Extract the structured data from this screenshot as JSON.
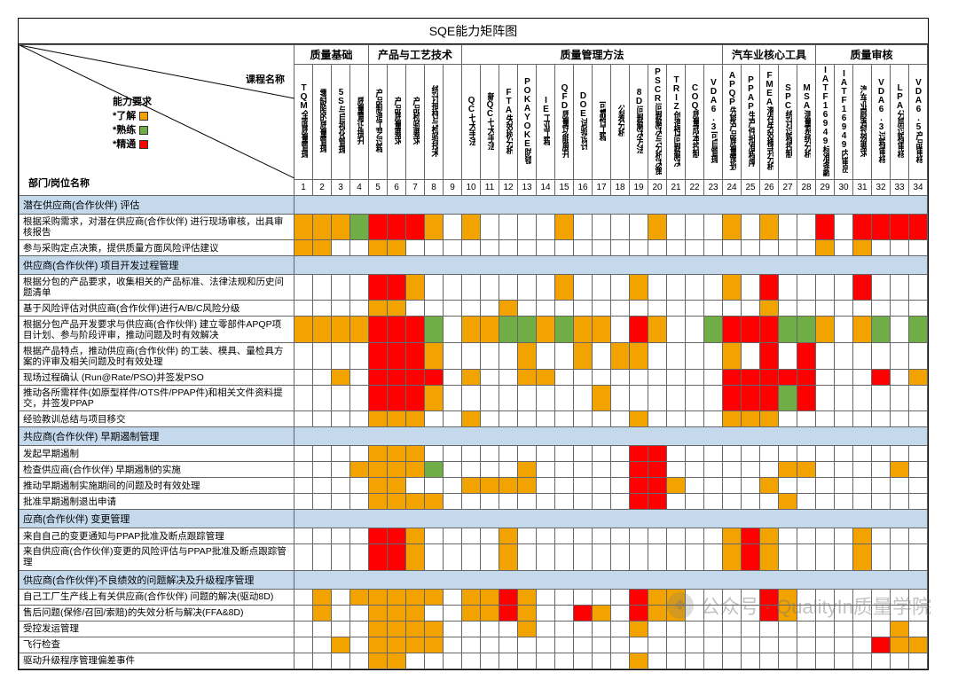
{
  "title": "SQE能力矩阵图",
  "corner": {
    "course": "课程名称",
    "ability": "能力要求",
    "dept": "部门/岗位名称",
    "legend": [
      {
        "label": "*了解",
        "color": "#f2a300"
      },
      {
        "label": "*熟练",
        "color": "#70ad47"
      },
      {
        "label": "*精通",
        "color": "#ff0000"
      }
    ]
  },
  "colors": {
    "o": "#f2a300",
    "g": "#70ad47",
    "r": "#ff0000",
    "section": "#c5d9ed"
  },
  "groups": [
    {
      "label": "质量基础",
      "span": 4
    },
    {
      "label": "产品与工艺技术",
      "span": 5
    },
    {
      "label": "质量管理方法",
      "span": 14
    },
    {
      "label": "汽车业核心工具",
      "span": 5
    },
    {
      "label": "质量审核",
      "span": 6
    }
  ],
  "columns": [
    "TQM全面质量管理",
    "零缺陷的质量管理",
    "5S与目视化管理",
    "质量意识提升",
    "产品制造工艺过程",
    "产品质量要求",
    "产品检验要求",
    "统计抽样与检验技术",
    "",
    "QC七大手法",
    "新QC七大手法",
    "FTA失效树分析",
    "POKAYOKE防错",
    "IE工业工程",
    "QFD质量功能展开",
    "DOE试验设计",
    "可靠性工程",
    "公差分析",
    "8D问题解决方法",
    "PSCR问题解决与分析决策",
    "TRIZ创造性问题解决",
    "COQ质量成本控制",
    "VDA6.3可自管理",
    "APQP先期产品质量策划",
    "PPAP生产件批准程序",
    "FMEA潜在失效模式分析",
    "SPC统计过程控制",
    "MSA测量系统分析",
    "IATF16949标准条款",
    "IATF16949内审员",
    "汽车业顾客特殊要求",
    "VDA6.3过程审核",
    "LPA分层过程审核",
    "VDA6.5产品审核"
  ],
  "rows": [
    {
      "type": "section",
      "label": "潜在供应商(合作伙伴)   评估"
    },
    {
      "type": "data",
      "label": "根据采购需求，对潜在供应商(合作伙伴) 进行现场审核，出具审核报告",
      "cells": [
        "o",
        "o",
        "o",
        "g",
        "r",
        "r",
        "r",
        "o",
        "",
        "o",
        "",
        "",
        "",
        "",
        "o",
        "",
        "",
        "",
        "",
        "o",
        "",
        "",
        "",
        "o",
        "",
        "o",
        "",
        "",
        "r",
        "",
        "r",
        "r",
        "r",
        "r"
      ]
    },
    {
      "type": "data",
      "label": "参与采购定点决策，提供质量方面风险评估建议",
      "cells": [
        "o",
        "o",
        "",
        "",
        "o",
        "o",
        "",
        "",
        "",
        "",
        "",
        "",
        "",
        "",
        "",
        "",
        "",
        "",
        "",
        "",
        "",
        "",
        "",
        "",
        "",
        "",
        "",
        "",
        "o",
        "",
        "o",
        "",
        "",
        ""
      ]
    },
    {
      "type": "section",
      "label": "供应商(合作伙伴)   项目开发过程管理"
    },
    {
      "type": "data",
      "label": "根据分包的产品要求，收集相关的产品标准、法律法规和历史问题清单",
      "cells": [
        "",
        "",
        "",
        "",
        "r",
        "r",
        "o",
        "",
        "",
        "",
        "",
        "",
        "",
        "",
        "o",
        "",
        "",
        "",
        "o",
        "",
        "",
        "",
        "",
        "o",
        "",
        "r",
        "",
        "",
        "",
        "",
        "r",
        "",
        "",
        ""
      ]
    },
    {
      "type": "data",
      "label": "基于风险评估对供应商(合作伙伴)进行A/B/C风险分级",
      "cells": [
        "",
        "",
        "",
        "",
        "o",
        "o",
        "",
        "",
        "",
        "",
        "",
        "o",
        "",
        "",
        "",
        "",
        "",
        "",
        "",
        "",
        "",
        "",
        "",
        "",
        "",
        "o",
        "",
        "",
        "",
        "",
        "",
        "",
        "",
        ""
      ]
    },
    {
      "type": "data",
      "tall": true,
      "label": "根据分包产品开发要求与供应商(合作伙伴) 建立零部件APQP项目计划、参与阶段评审，推动问题及时有效解决",
      "cells": [
        "o",
        "o",
        "o",
        "o",
        "r",
        "r",
        "r",
        "g",
        "",
        "o",
        "o",
        "g",
        "g",
        "o",
        "g",
        "o",
        "o",
        "",
        "r",
        "o",
        "",
        "",
        "g",
        "r",
        "r",
        "r",
        "g",
        "g",
        "o",
        "",
        "o",
        "g",
        "",
        "g"
      ]
    },
    {
      "type": "data",
      "tall": true,
      "label": "根据产品特点，推动供应商(合作伙伴) 的工装、模具、量检具方案的评审及相关问题及时有效处理",
      "cells": [
        "",
        "",
        "",
        "",
        "r",
        "r",
        "r",
        "o",
        "",
        "",
        "",
        "",
        "o",
        "",
        "",
        "o",
        "",
        "o",
        "o",
        "",
        "",
        "",
        "",
        "o",
        "",
        "r",
        "",
        "r",
        "",
        "",
        "",
        "",
        "",
        ""
      ]
    },
    {
      "type": "data",
      "label": "现场过程确认 (Run@Rate/PSO)并签发PSO",
      "cells": [
        "",
        "",
        "o",
        "",
        "r",
        "r",
        "r",
        "r",
        "",
        "o",
        "",
        "",
        "o",
        "o",
        "",
        "",
        "",
        "",
        "",
        "",
        "",
        "",
        "",
        "r",
        "r",
        "r",
        "r",
        "r",
        "",
        "",
        "",
        "r",
        "",
        "o"
      ]
    },
    {
      "type": "data",
      "label": "推动各所需样件(如原型样件/OTS件/PPAP件)和相关文件资料提交，并签发PPAP",
      "cells": [
        "",
        "",
        "",
        "",
        "r",
        "r",
        "r",
        "o",
        "",
        "",
        "",
        "",
        "",
        "",
        "",
        "",
        "o",
        "",
        "",
        "",
        "",
        "",
        "",
        "r",
        "r",
        "r",
        "g",
        "r",
        "",
        "",
        "",
        "",
        "",
        ""
      ]
    },
    {
      "type": "data",
      "label": "经验教训总结与项目移交",
      "cells": [
        "",
        "",
        "",
        "",
        "o",
        "o",
        "o",
        "",
        "",
        "o",
        "",
        "",
        "",
        "",
        "",
        "",
        "",
        "",
        "o",
        "",
        "",
        "",
        "",
        "o",
        "o",
        "o",
        "",
        "",
        "",
        "",
        "",
        "",
        "",
        ""
      ]
    },
    {
      "type": "section",
      "label": "共应商(合作伙伴)   早期遏制管理"
    },
    {
      "type": "data",
      "label": "发起早期遏制",
      "cells": [
        "",
        "",
        "",
        "",
        "o",
        "o",
        "o",
        "",
        "",
        "",
        "",
        "",
        "",
        "",
        "",
        "",
        "",
        "",
        "r",
        "r",
        "",
        "",
        "",
        "",
        "",
        "",
        "",
        "",
        "",
        "",
        "",
        "",
        "",
        ""
      ]
    },
    {
      "type": "data",
      "label": "检查供应商(合作伙伴) 早期遏制的实施",
      "cells": [
        "",
        "",
        "",
        "o",
        "o",
        "o",
        "o",
        "g",
        "",
        "",
        "",
        "",
        "o",
        "",
        "",
        "",
        "",
        "",
        "r",
        "r",
        "",
        "",
        "",
        "",
        "",
        "",
        "o",
        "o",
        "",
        "",
        "",
        "",
        "o",
        ""
      ]
    },
    {
      "type": "data",
      "label": "推动早期遏制实施期间的问题及时有效处理",
      "cells": [
        "",
        "",
        "",
        "",
        "o",
        "o",
        "",
        "",
        "",
        "o",
        "o",
        "o",
        "o",
        "",
        "",
        "",
        "",
        "",
        "r",
        "r",
        "o",
        "",
        "",
        "",
        "",
        "o",
        "",
        "",
        "",
        "",
        "",
        "",
        "",
        ""
      ]
    },
    {
      "type": "data",
      "label": "批准早期遏制退出申请",
      "cells": [
        "",
        "",
        "",
        "",
        "o",
        "o",
        "o",
        "o",
        "",
        "",
        "",
        "",
        "",
        "",
        "",
        "",
        "",
        "",
        "r",
        "r",
        "",
        "",
        "",
        "",
        "",
        "",
        "o",
        "",
        "",
        "",
        "",
        "",
        "",
        ""
      ]
    },
    {
      "type": "section",
      "label": "应商(合作伙伴)   变更管理"
    },
    {
      "type": "data",
      "label": "来自自己的变更通知与PPAP批准及断点跟踪管理",
      "cells": [
        "",
        "",
        "",
        "",
        "r",
        "r",
        "o",
        "",
        "",
        "",
        "",
        "o",
        "",
        "",
        "",
        "",
        "",
        "",
        "",
        "",
        "",
        "",
        "",
        "o",
        "r",
        "o",
        "",
        "",
        "",
        "",
        "o",
        "",
        "",
        ""
      ]
    },
    {
      "type": "data",
      "label": "来自供应商(合作伙伴)变更的风险评估与PPAP批准及断点跟踪管理",
      "cells": [
        "",
        "",
        "",
        "",
        "r",
        "r",
        "o",
        "",
        "",
        "",
        "",
        "o",
        "",
        "",
        "",
        "",
        "",
        "",
        "",
        "",
        "",
        "",
        "",
        "o",
        "r",
        "o",
        "",
        "",
        "",
        "",
        "o",
        "",
        "",
        ""
      ]
    },
    {
      "type": "section",
      "label": "供应商(合作伙伴)不良绩效的问题解决及升级程序管理"
    },
    {
      "type": "data",
      "label": "自己工厂生产线上有关供应商(合作伙伴) 问题的解决(驱动8D)",
      "cells": [
        "",
        "o",
        "",
        "o",
        "o",
        "o",
        "o",
        "o",
        "",
        "o",
        "o",
        "r",
        "o",
        "",
        "",
        "",
        "",
        "",
        "r",
        "o",
        "o",
        "",
        "",
        "",
        "",
        "r",
        "o",
        "",
        "",
        "",
        "",
        "",
        "",
        ""
      ]
    },
    {
      "type": "data",
      "label": "售后问题(保修/召回/索赔)的失效分析与解决(FFA&8D)",
      "cells": [
        "",
        "o",
        "",
        "",
        "o",
        "o",
        "o",
        "",
        "",
        "o",
        "o",
        "r",
        "o",
        "",
        "",
        "r",
        "o",
        "",
        "r",
        "o",
        "o",
        "",
        "",
        "",
        "",
        "r",
        "o",
        "",
        "",
        "",
        "",
        "",
        "",
        ""
      ]
    },
    {
      "type": "data",
      "label": "受控发运管理",
      "cells": [
        "",
        "",
        "",
        "",
        "o",
        "o",
        "o",
        "o",
        "",
        "",
        "",
        "",
        "o",
        "",
        "",
        "",
        "",
        "",
        "o",
        "",
        "",
        "",
        "",
        "",
        "",
        "",
        "",
        "",
        "",
        "",
        "",
        "",
        "o",
        ""
      ]
    },
    {
      "type": "data",
      "label": "飞行检查",
      "cells": [
        "",
        "",
        "o",
        "",
        "o",
        "o",
        "o",
        "o",
        "",
        "",
        "",
        "",
        "",
        "",
        "",
        "",
        "",
        "",
        "",
        "",
        "",
        "",
        "",
        "",
        "",
        "",
        "",
        "",
        "",
        "",
        "",
        "r",
        "o",
        "o"
      ]
    },
    {
      "type": "data",
      "label": "驱动升级程序管理偏差事件",
      "cells": [
        "",
        "",
        "",
        "",
        "o",
        "o",
        "",
        "",
        "",
        "",
        "",
        "",
        "",
        "",
        "",
        "",
        "",
        "",
        "o",
        "",
        "",
        "",
        "",
        "",
        "",
        "",
        "",
        "",
        "",
        "",
        "",
        "",
        "",
        ""
      ]
    }
  ],
  "watermark": "公众号 · QualityIn质量学院"
}
